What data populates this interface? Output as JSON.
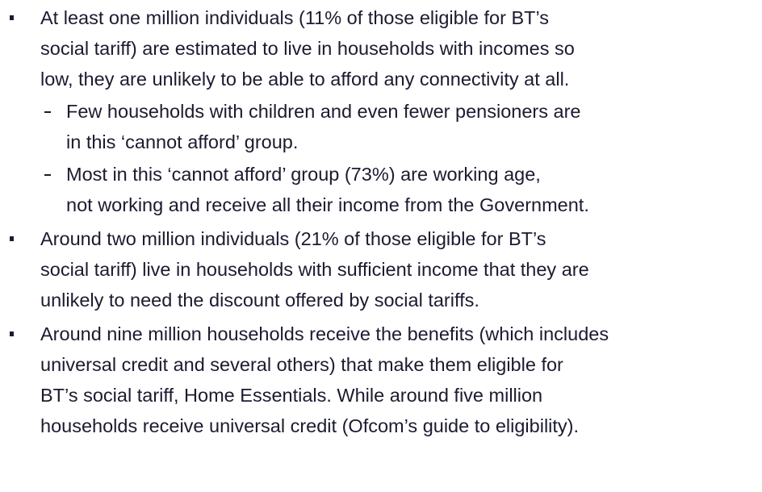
{
  "items": [
    {
      "lines": [
        "At least one million individuals (11% of those eligible for BT’s",
        "social tariff) are estimated to live in households with incomes so",
        "low, they are unlikely to be able to afford any connectivity at all."
      ],
      "subitems": [
        {
          "lines": [
            "Few households with children and even fewer pensioners are",
            "in this ‘cannot afford’ group."
          ]
        },
        {
          "lines": [
            "Most in this ‘cannot afford’ group (73%) are working age,",
            "not working and receive all their income from the Government."
          ]
        }
      ]
    },
    {
      "lines": [
        "Around two million individuals (21% of those eligible for BT’s",
        "social tariff) live in households with sufficient income that they are",
        "unlikely to need the discount offered by social tariffs."
      ]
    },
    {
      "lines": [
        "Around nine million households receive the benefits (which includes",
        "universal credit and several others) that make them eligible for",
        "BT’s social tariff, Home Essentials. While around five million",
        "households receive universal credit (Ofcom’s guide to eligibility)."
      ]
    }
  ]
}
